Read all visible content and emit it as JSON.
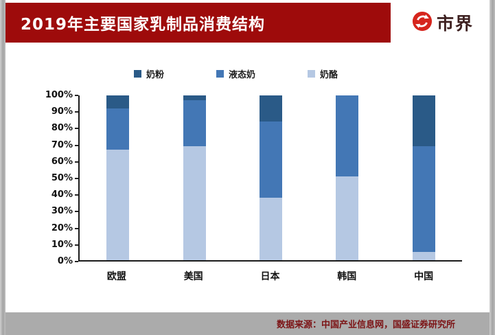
{
  "header": {
    "title": "2019年主要国家乳制品消费结构",
    "brand": "市界",
    "banner_color": "#9e0b0b",
    "logo_red": "#d6251d"
  },
  "footer": {
    "source": "数据来源：中国产业信息网，国盛证券研究所",
    "bg_color": "#ababab",
    "text_color": "#7c1416"
  },
  "chart_data": {
    "type": "bar",
    "stacked": true,
    "unit": "percent",
    "title": "2019年主要国家乳制品消费结构",
    "categories": [
      "欧盟",
      "美国",
      "日本",
      "韩国",
      "中国"
    ],
    "series": [
      {
        "name": "奶酪",
        "color": "#b5c8e3",
        "values": [
          67,
          69,
          38,
          51,
          5
        ]
      },
      {
        "name": "液态奶",
        "color": "#4377b5",
        "values": [
          25,
          28,
          46,
          49,
          64
        ]
      },
      {
        "name": "奶粉",
        "color": "#2a5a87",
        "values": [
          8,
          3,
          16,
          0,
          31
        ]
      }
    ],
    "legend_order": [
      "奶粉",
      "液态奶",
      "奶酪"
    ],
    "y_ticks": [
      "100%",
      "90%",
      "80%",
      "70%",
      "60%",
      "50%",
      "40%",
      "30%",
      "20%",
      "10%",
      "0%"
    ],
    "ylim": [
      0,
      100
    ],
    "grid": false,
    "legend_position": "top"
  }
}
